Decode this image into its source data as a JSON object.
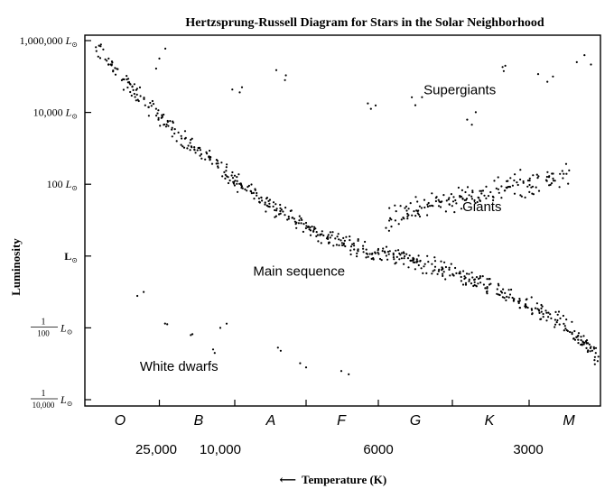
{
  "chart_data": {
    "type": "scatter",
    "title": "Hertzsprung-Russell Diagram for Stars in the Solar Neighborhood",
    "ylabel": "Luminosity",
    "xlabel": "Temperature (K)",
    "xlabel_arrow": "⟵",
    "y_scale": "log",
    "ylim_log10": [
      -4,
      6
    ],
    "y_ticks": [
      {
        "log": 6,
        "num": "1,000,000",
        "unit": "L",
        "sun": "⊙"
      },
      {
        "log": 4,
        "num": "10,000",
        "unit": "L",
        "sun": "⊙"
      },
      {
        "log": 2,
        "num": "100",
        "unit": "L",
        "sun": "⊙"
      },
      {
        "log": 0,
        "num": "",
        "unit": "L",
        "sun": "⊙"
      },
      {
        "log": -2,
        "frac_num": "1",
        "frac_den": "100",
        "unit": "L",
        "sun": "⊙"
      },
      {
        "log": -4,
        "frac_num": "1",
        "frac_den": "10,000",
        "unit": "L",
        "sun": "⊙"
      }
    ],
    "spectral_classes": [
      "O",
      "B",
      "A",
      "F",
      "G",
      "K",
      "M"
    ],
    "temperature_labels": [
      "25,000",
      "10,000",
      "6000",
      "3000"
    ],
    "x_axis_note": "x position encodes spectral class (O to M); x values are spectral-class index 0=O … 6=M",
    "regions": [
      {
        "name": "Supergiants",
        "x": 4.6,
        "log_L": 4.5
      },
      {
        "name": "Giants",
        "x": 4.9,
        "log_L": 1.25
      },
      {
        "name": "Main sequence",
        "x": 2.4,
        "log_L": -0.55
      },
      {
        "name": "White dwarfs",
        "x": 0.75,
        "log_L": -3.2
      }
    ],
    "series": [
      {
        "name": "Main sequence",
        "points": [
          [
            -0.35,
            5.9
          ],
          [
            0.05,
            4.9
          ],
          [
            0.3,
            4.3
          ],
          [
            0.6,
            3.7
          ],
          [
            0.9,
            3.1
          ],
          [
            1.2,
            2.6
          ],
          [
            1.5,
            2.1
          ],
          [
            1.8,
            1.7
          ],
          [
            2.1,
            1.3
          ],
          [
            2.4,
            0.9
          ],
          [
            2.7,
            0.6
          ],
          [
            3.0,
            0.4
          ],
          [
            3.3,
            0.2
          ],
          [
            3.6,
            0.05
          ],
          [
            3.9,
            -0.1
          ],
          [
            4.2,
            -0.25
          ],
          [
            4.5,
            -0.45
          ],
          [
            4.8,
            -0.7
          ],
          [
            5.1,
            -0.95
          ],
          [
            5.4,
            -1.25
          ],
          [
            5.7,
            -1.6
          ],
          [
            6.0,
            -2.0
          ],
          [
            6.2,
            -2.45
          ],
          [
            6.4,
            -2.95
          ],
          [
            6.55,
            -3.5
          ]
        ]
      },
      {
        "name": "Giants",
        "points": [
          [
            3.6,
            0.9
          ],
          [
            3.9,
            1.2
          ],
          [
            4.2,
            1.4
          ],
          [
            4.5,
            1.55
          ],
          [
            4.8,
            1.7
          ],
          [
            5.1,
            1.85
          ],
          [
            5.4,
            2.0
          ],
          [
            5.7,
            2.15
          ],
          [
            6.0,
            2.3
          ]
        ]
      },
      {
        "name": "Supergiants",
        "points": [
          [
            0.5,
            5.5
          ],
          [
            1.6,
            4.7
          ],
          [
            2.2,
            4.9
          ],
          [
            3.4,
            4.1
          ],
          [
            4.0,
            4.2
          ],
          [
            4.7,
            3.8
          ],
          [
            5.2,
            5.3
          ],
          [
            5.8,
            5.0
          ],
          [
            6.1,
            5.4
          ]
        ]
      },
      {
        "name": "White dwarfs",
        "points": [
          [
            0.3,
            -1.0
          ],
          [
            0.6,
            -1.9
          ],
          [
            0.9,
            -2.2
          ],
          [
            1.2,
            -2.6
          ],
          [
            1.3,
            -2.0
          ],
          [
            2.1,
            -2.55
          ],
          [
            2.5,
            -3.1
          ],
          [
            3.0,
            -3.2
          ]
        ]
      }
    ]
  }
}
